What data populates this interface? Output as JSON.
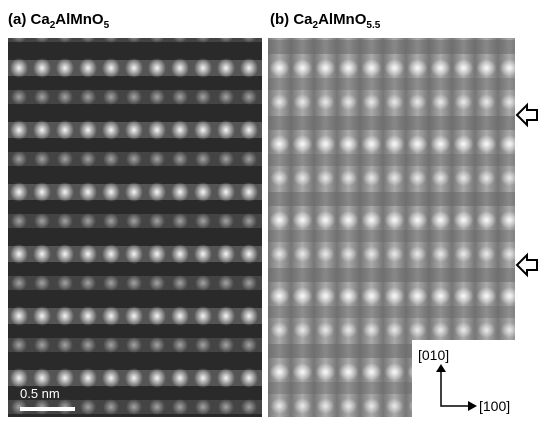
{
  "panels": [
    {
      "label": {
        "prefix": "(a) Ca",
        "sub1": "2",
        "mid": "AlMnO",
        "sub2": "5"
      }
    },
    {
      "label": {
        "prefix": "(b) Ca",
        "sub1": "2",
        "mid": "AlMnO",
        "sub2": "5.5"
      }
    }
  ],
  "scale_bar": "0.5 nm",
  "axes": {
    "vertical": "[010]",
    "horizontal": "[100]"
  }
}
